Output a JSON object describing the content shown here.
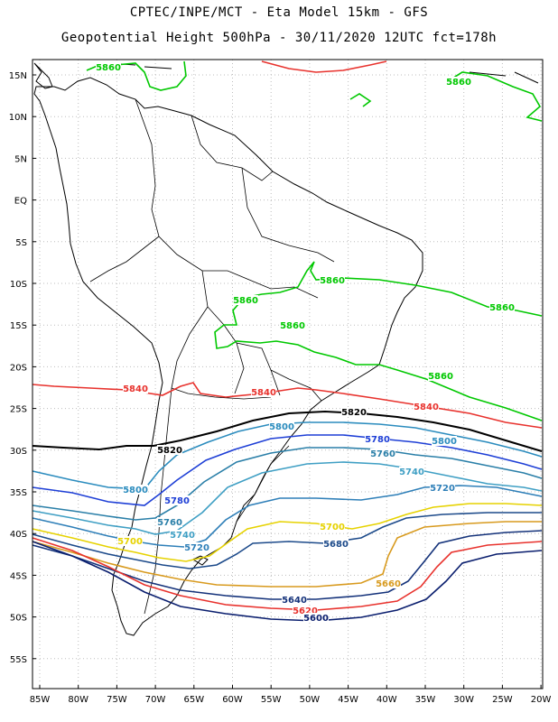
{
  "title_line1": "CPTEC/INPE/MCT -  Eta Model 15km - GFS",
  "title_line2": "Geopotential Height 500hPa - 30/11/2020 12UTC fct=178h",
  "lat_ticks": [
    "15N",
    "10N",
    "5N",
    "EQ",
    "5S",
    "10S",
    "15S",
    "20S",
    "25S",
    "30S",
    "35S",
    "40S",
    "45S",
    "50S",
    "55S"
  ],
  "lon_ticks": [
    "85W",
    "80W",
    "75W",
    "70W",
    "65W",
    "60W",
    "55W",
    "50W",
    "45W",
    "40W",
    "35W",
    "30W",
    "25W",
    "20W"
  ],
  "contour_labels": [
    {
      "text": "5860",
      "color": "#00c800"
    },
    {
      "text": "5860",
      "color": "#00c800"
    },
    {
      "text": "5860",
      "color": "#00c800"
    },
    {
      "text": "5860",
      "color": "#00c800"
    },
    {
      "text": "5860",
      "color": "#00c800"
    },
    {
      "text": "5860",
      "color": "#00c800"
    },
    {
      "text": "5860",
      "color": "#00c800"
    },
    {
      "text": "5840",
      "color": "#e8322d"
    },
    {
      "text": "5840",
      "color": "#e8322d"
    },
    {
      "text": "5840",
      "color": "#e8322d"
    },
    {
      "text": "5820",
      "color": "#000000"
    },
    {
      "text": "5820",
      "color": "#000000"
    },
    {
      "text": "5800",
      "color": "#2b8cbe"
    },
    {
      "text": "5800",
      "color": "#2b8cbe"
    },
    {
      "text": "5800",
      "color": "#2b8cbe"
    },
    {
      "text": "5780",
      "color": "#1e3fd6"
    },
    {
      "text": "5780",
      "color": "#1e3fd6"
    },
    {
      "text": "5760",
      "color": "#2a7fa8"
    },
    {
      "text": "5760",
      "color": "#2a7fa8"
    },
    {
      "text": "5740",
      "color": "#3f9fc4"
    },
    {
      "text": "5740",
      "color": "#3f9fc4"
    },
    {
      "text": "5720",
      "color": "#2e7fb8"
    },
    {
      "text": "5720",
      "color": "#2e7fb8"
    },
    {
      "text": "5700",
      "color": "#e6d200"
    },
    {
      "text": "5700",
      "color": "#e6d200"
    },
    {
      "text": "5680",
      "color": "#1c4a8a"
    },
    {
      "text": "5660",
      "color": "#d89a1e"
    },
    {
      "text": "5640",
      "color": "#14327a"
    },
    {
      "text": "5620",
      "color": "#e8322d"
    },
    {
      "text": "5600",
      "color": "#0a1e6e"
    }
  ],
  "colors": {
    "grid": "#bdbdbd",
    "coast": "#000000",
    "frame": "#000000"
  }
}
